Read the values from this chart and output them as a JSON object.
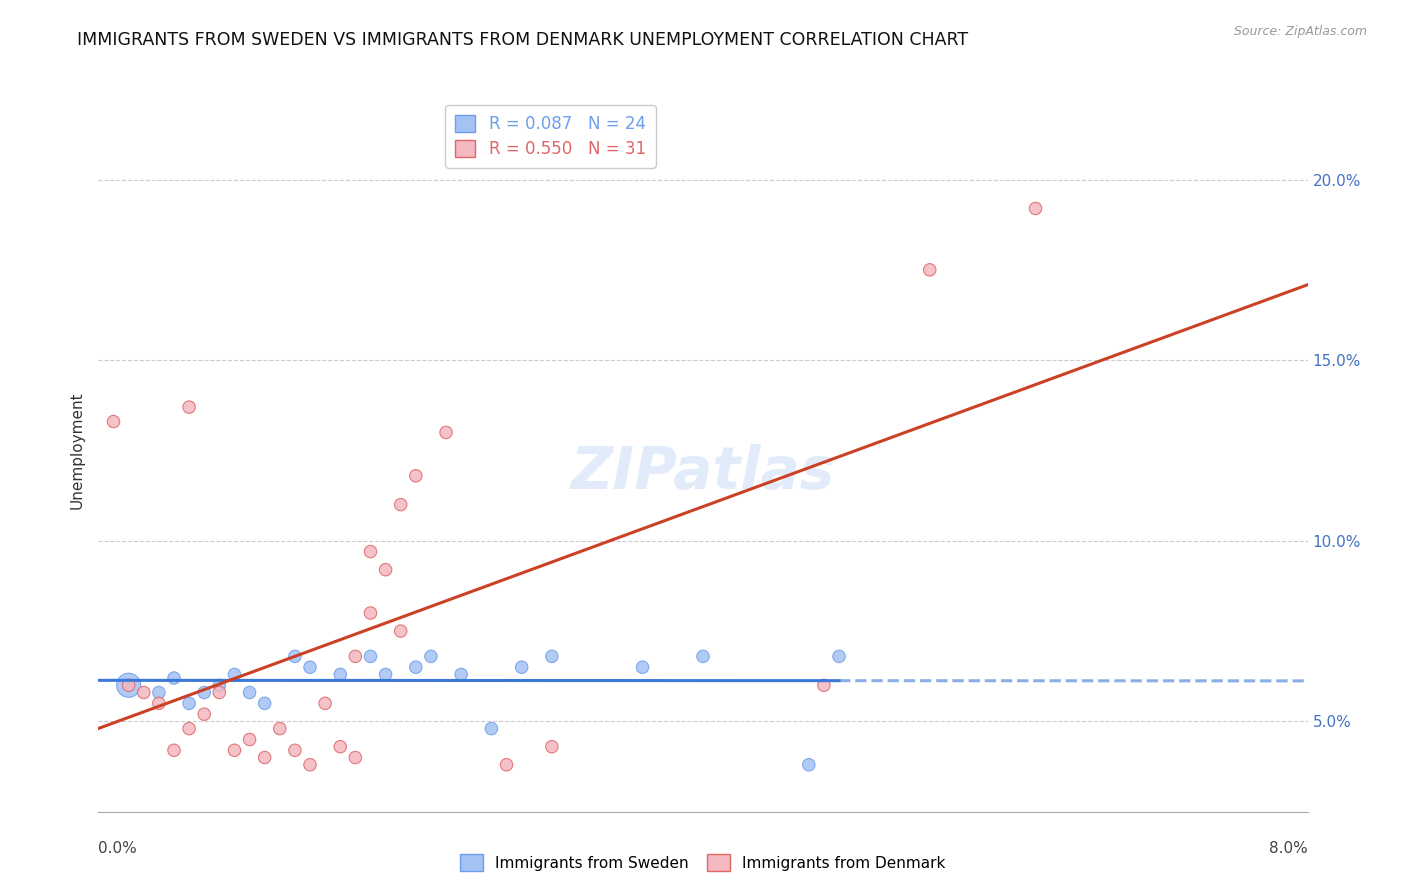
{
  "title": "IMMIGRANTS FROM SWEDEN VS IMMIGRANTS FROM DENMARK UNEMPLOYMENT CORRELATION CHART",
  "source": "Source: ZipAtlas.com",
  "ylabel": "Unemployment",
  "right_yticks": [
    "5.0%",
    "10.0%",
    "15.0%",
    "20.0%"
  ],
  "right_ytick_vals": [
    0.05,
    0.1,
    0.15,
    0.2
  ],
  "xlim": [
    0.0,
    0.08
  ],
  "ylim": [
    0.025,
    0.225
  ],
  "legend_sweden": "R = 0.087   N = 24",
  "legend_denmark": "R = 0.550   N = 31",
  "watermark": "ZIPatlas",
  "sweden_color": "#a4c2f4",
  "denmark_color": "#f4b8c1",
  "sweden_edge": "#6d9eeb",
  "denmark_edge": "#e06666",
  "trend_sweden_color": "#3c78d8",
  "trend_denmark_color": "#cc4125",
  "sweden_points": [
    [
      0.002,
      0.06,
      300
    ],
    [
      0.004,
      0.058,
      80
    ],
    [
      0.005,
      0.062,
      80
    ],
    [
      0.006,
      0.055,
      80
    ],
    [
      0.007,
      0.058,
      80
    ],
    [
      0.008,
      0.06,
      80
    ],
    [
      0.009,
      0.063,
      80
    ],
    [
      0.01,
      0.058,
      80
    ],
    [
      0.011,
      0.055,
      80
    ],
    [
      0.013,
      0.068,
      80
    ],
    [
      0.014,
      0.065,
      80
    ],
    [
      0.016,
      0.063,
      80
    ],
    [
      0.018,
      0.068,
      80
    ],
    [
      0.019,
      0.063,
      80
    ],
    [
      0.021,
      0.065,
      80
    ],
    [
      0.022,
      0.068,
      80
    ],
    [
      0.024,
      0.063,
      80
    ],
    [
      0.026,
      0.048,
      80
    ],
    [
      0.028,
      0.065,
      80
    ],
    [
      0.03,
      0.068,
      80
    ],
    [
      0.036,
      0.065,
      80
    ],
    [
      0.04,
      0.068,
      80
    ],
    [
      0.047,
      0.038,
      80
    ],
    [
      0.049,
      0.068,
      80
    ]
  ],
  "denmark_points": [
    [
      0.002,
      0.06,
      80
    ],
    [
      0.003,
      0.058,
      80
    ],
    [
      0.004,
      0.055,
      80
    ],
    [
      0.005,
      0.042,
      80
    ],
    [
      0.006,
      0.048,
      80
    ],
    [
      0.007,
      0.052,
      80
    ],
    [
      0.008,
      0.058,
      80
    ],
    [
      0.009,
      0.042,
      80
    ],
    [
      0.01,
      0.045,
      80
    ],
    [
      0.011,
      0.04,
      80
    ],
    [
      0.012,
      0.048,
      80
    ],
    [
      0.013,
      0.042,
      80
    ],
    [
      0.014,
      0.038,
      80
    ],
    [
      0.015,
      0.055,
      80
    ],
    [
      0.016,
      0.043,
      80
    ],
    [
      0.017,
      0.04,
      80
    ],
    [
      0.017,
      0.068,
      80
    ],
    [
      0.018,
      0.08,
      80
    ],
    [
      0.019,
      0.092,
      80
    ],
    [
      0.02,
      0.075,
      80
    ],
    [
      0.02,
      0.11,
      80
    ],
    [
      0.021,
      0.118,
      80
    ],
    [
      0.023,
      0.13,
      80
    ],
    [
      0.006,
      0.137,
      80
    ],
    [
      0.027,
      0.038,
      80
    ],
    [
      0.03,
      0.043,
      80
    ],
    [
      0.001,
      0.133,
      80
    ],
    [
      0.018,
      0.097,
      80
    ],
    [
      0.048,
      0.06,
      80
    ],
    [
      0.055,
      0.175,
      80
    ],
    [
      0.062,
      0.192,
      80
    ]
  ]
}
